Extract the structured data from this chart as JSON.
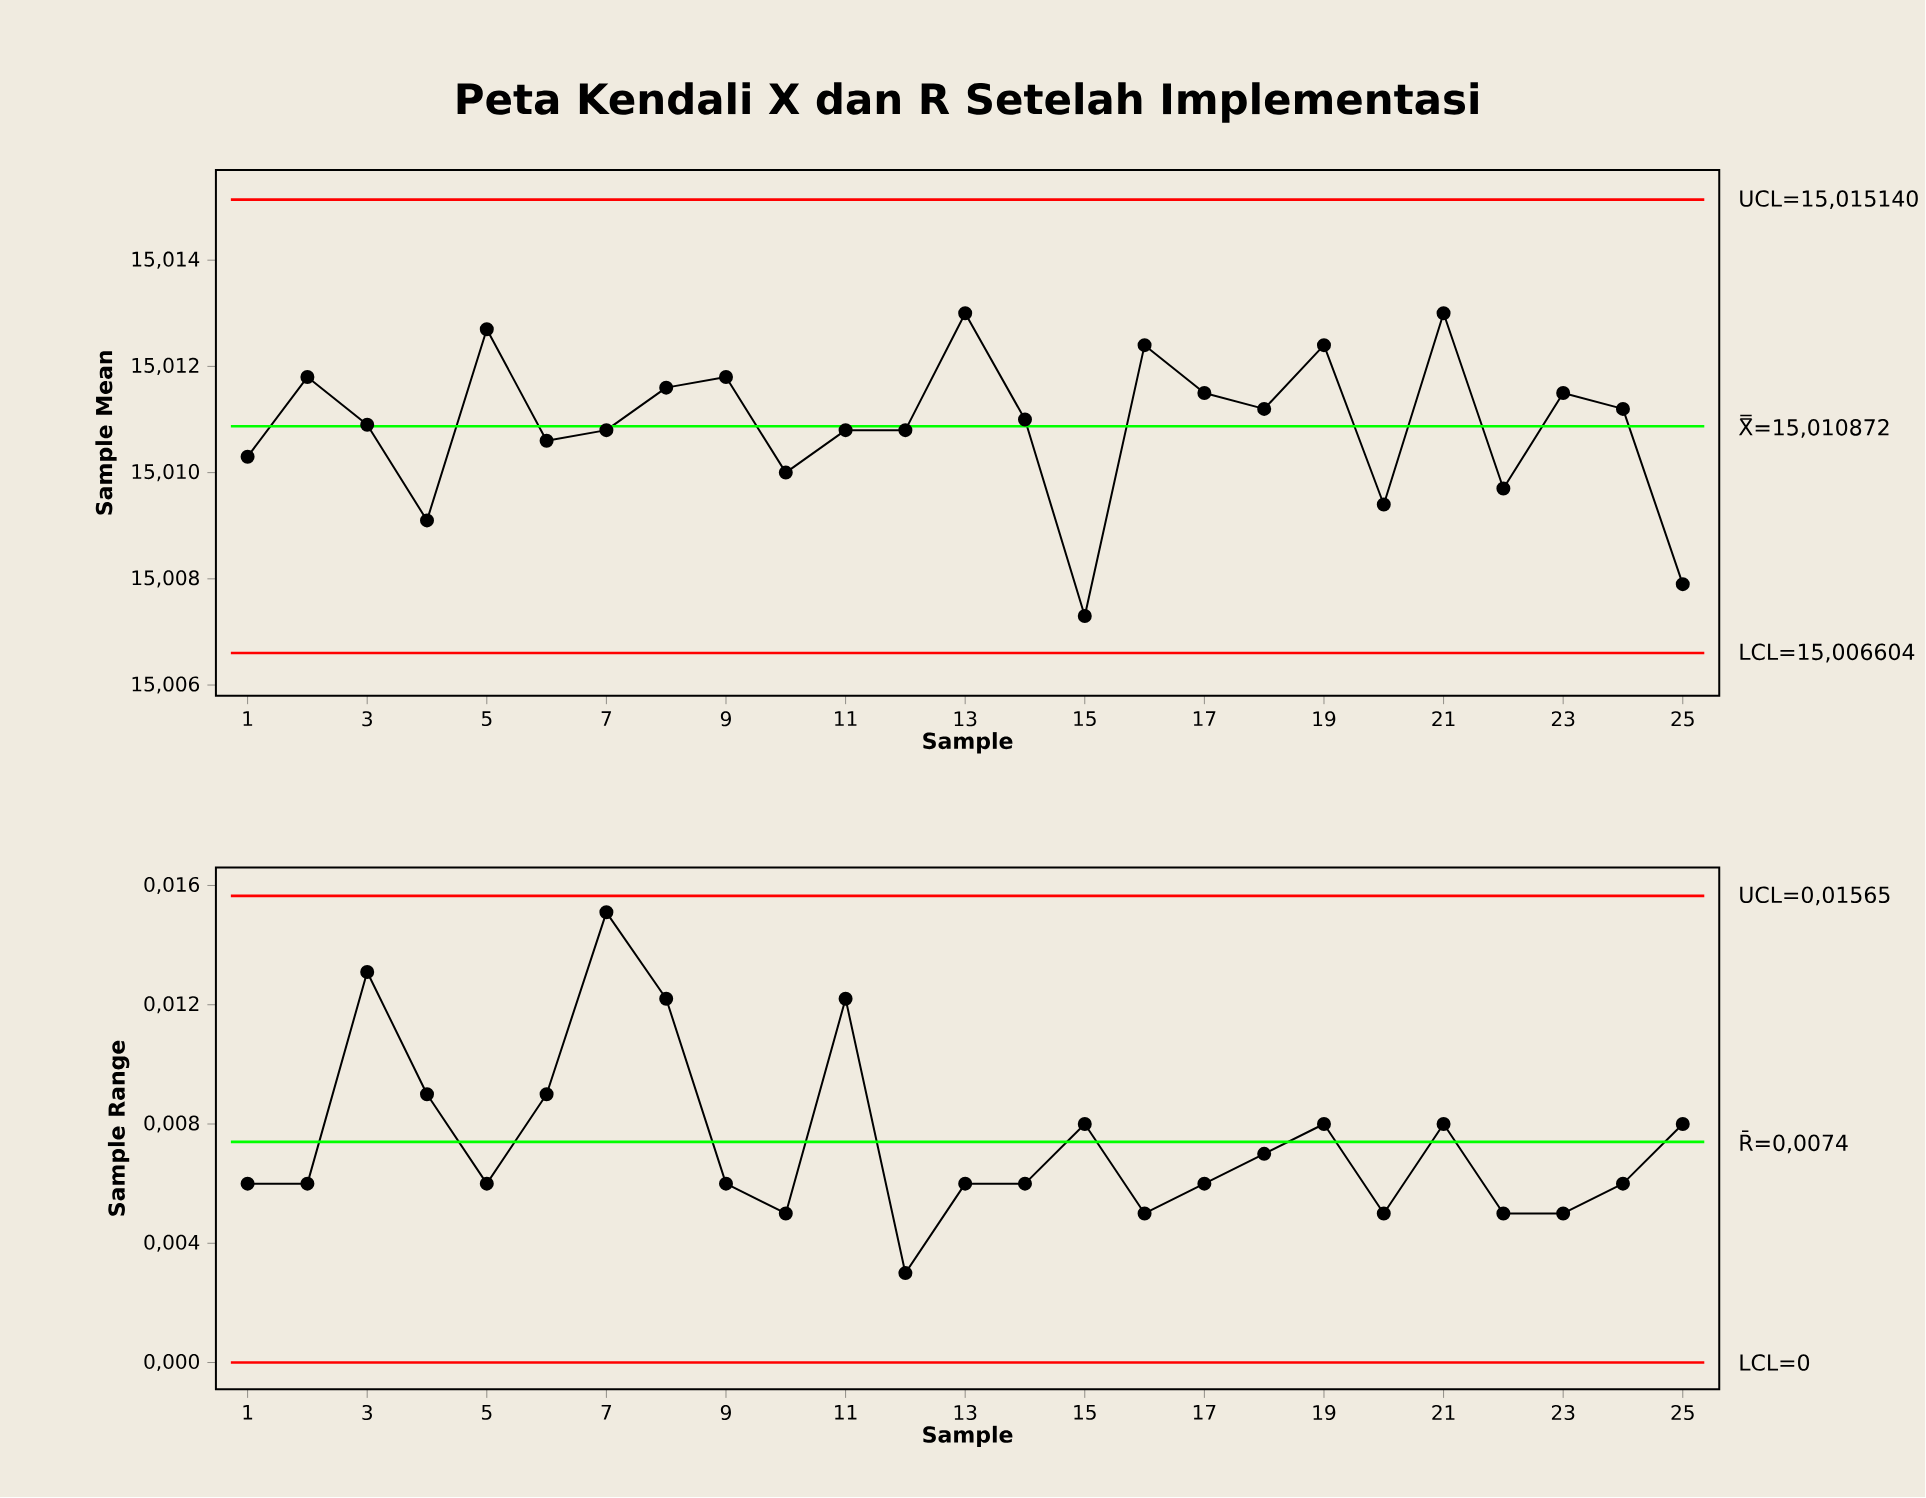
{
  "chart_data": [
    {
      "type": "line",
      "title": "Peta Kendali X dan R Setelah Implementasi",
      "xlabel": "Sample",
      "ylabel": "Sample Mean",
      "x": [
        1,
        2,
        3,
        4,
        5,
        6,
        7,
        8,
        9,
        10,
        11,
        12,
        13,
        14,
        15,
        16,
        17,
        18,
        19,
        20,
        21,
        22,
        23,
        24,
        25
      ],
      "series": [
        {
          "color": "#000000",
          "values": [
            15.0103,
            15.0118,
            15.0109,
            15.0091,
            15.0127,
            15.0106,
            15.0108,
            15.0116,
            15.0118,
            15.01,
            15.0108,
            15.0108,
            15.013,
            15.011,
            15.0073,
            15.0124,
            15.0115,
            15.0112,
            15.0124,
            15.0094,
            15.013,
            15.0097,
            15.0115,
            15.0112,
            15.0079
          ]
        }
      ],
      "xlim": [
        0.47,
        25.61
      ],
      "xticks": [
        1,
        3,
        5,
        7,
        9,
        11,
        13,
        15,
        17,
        19,
        21,
        23,
        25
      ],
      "ylim": [
        15.0058,
        15.0157
      ],
      "yticks": [
        {
          "value": 15.006,
          "label": "15,006"
        },
        {
          "value": 15.008,
          "label": "15,008"
        },
        {
          "value": 15.01,
          "label": "15,010"
        },
        {
          "value": 15.012,
          "label": "15,012"
        },
        {
          "value": 15.014,
          "label": "15,014"
        }
      ],
      "ref_lines": [
        {
          "axis": "y",
          "value": 15.01514,
          "label": "UCL=15,015140",
          "color": "#ff0000"
        },
        {
          "axis": "y",
          "value": 15.010872,
          "label": "X̿=15,010872",
          "color": "#00ff00"
        },
        {
          "axis": "y",
          "value": 15.006604,
          "label": "LCL=15,006604",
          "color": "#ff0000"
        }
      ],
      "grid": false,
      "marker": "circle",
      "line_style": "solid"
    },
    {
      "type": "line",
      "xlabel": "Sample",
      "ylabel": "Sample Range",
      "x": [
        1,
        2,
        3,
        4,
        5,
        6,
        7,
        8,
        9,
        10,
        11,
        12,
        13,
        14,
        15,
        16,
        17,
        18,
        19,
        20,
        21,
        22,
        23,
        24,
        25
      ],
      "series": [
        {
          "color": "#000000",
          "values": [
            0.006,
            0.006,
            0.0131,
            0.009,
            0.006,
            0.009,
            0.0151,
            0.0122,
            0.006,
            0.005,
            0.0122,
            0.003,
            0.006,
            0.006,
            0.008,
            0.005,
            0.006,
            0.007,
            0.008,
            0.005,
            0.008,
            0.005,
            0.005,
            0.006,
            0.008
          ]
        }
      ],
      "xlim": [
        0.47,
        25.61
      ],
      "xticks": [
        1,
        3,
        5,
        7,
        9,
        11,
        13,
        15,
        17,
        19,
        21,
        23,
        25
      ],
      "ylim": [
        -0.0009,
        0.0166
      ],
      "yticks": [
        {
          "value": 0.0,
          "label": "0,000"
        },
        {
          "value": 0.004,
          "label": "0,004"
        },
        {
          "value": 0.008,
          "label": "0,008"
        },
        {
          "value": 0.012,
          "label": "0,012"
        },
        {
          "value": 0.016,
          "label": "0,016"
        }
      ],
      "ref_lines": [
        {
          "axis": "y",
          "value": 0.01565,
          "label": "UCL=0,01565",
          "color": "#ff0000"
        },
        {
          "axis": "y",
          "value": 0.0074,
          "label": "R̄=0,0074",
          "color": "#00ff00"
        },
        {
          "axis": "y",
          "value": 0.0,
          "label": "LCL=0",
          "color": "#ff0000"
        }
      ],
      "grid": false,
      "marker": "circle",
      "line_style": "solid"
    }
  ]
}
